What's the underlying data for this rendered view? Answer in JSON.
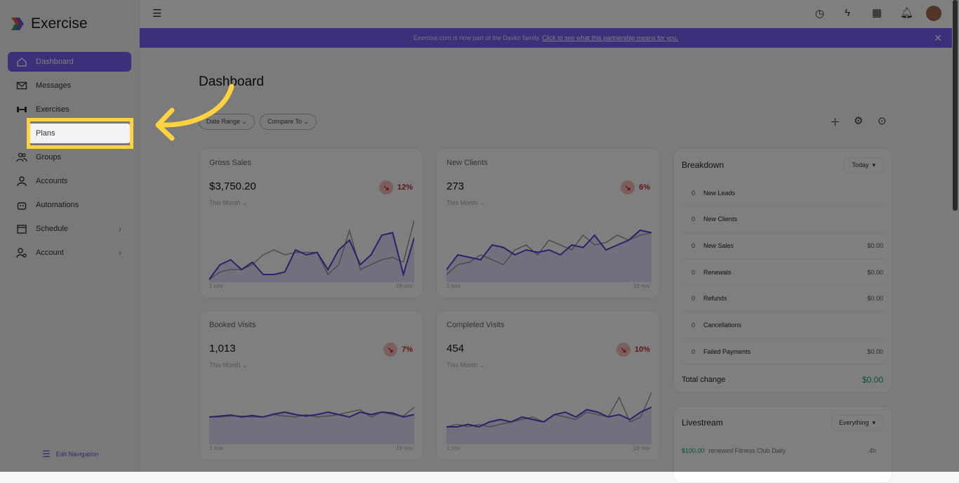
{
  "app": {
    "name": "Exercise"
  },
  "sidebar": {
    "items": [
      {
        "label": "Dashboard",
        "icon": "home-icon",
        "active": true
      },
      {
        "label": "Messages",
        "icon": "mail-icon"
      },
      {
        "label": "Exercises",
        "icon": "dumbbell-icon"
      },
      {
        "label": "Plans",
        "icon": "clipboard-icon"
      },
      {
        "label": "Groups",
        "icon": "users-icon"
      },
      {
        "label": "Accounts",
        "icon": "user-icon"
      },
      {
        "label": "Automations",
        "icon": "robot-icon"
      },
      {
        "label": "Schedule",
        "icon": "calendar-icon",
        "has_children": true
      },
      {
        "label": "Account",
        "icon": "user-gear-icon",
        "has_children": true
      }
    ],
    "edit_navigation": "Edit Navigation"
  },
  "banner": {
    "text": "Exercise.com is now part of the Daxko family. ",
    "link": "Click to see what this partnership means for you."
  },
  "page": {
    "title": "Dashboard",
    "date_range": "Date Range",
    "compare_to": "Compare To"
  },
  "metrics": [
    {
      "label": "Gross Sales",
      "value": "$3,750.20",
      "change": "12%",
      "period": "This Month",
      "start": "1 nov",
      "end": "19 nov"
    },
    {
      "label": "New Clients",
      "value": "273",
      "change": "6%",
      "period": "This Month",
      "start": "1 nov",
      "end": "19 nov"
    },
    {
      "label": "Booked Visits",
      "value": "1,013",
      "change": "7%",
      "period": "This Month",
      "start": "1 nov",
      "end": "19 nov"
    },
    {
      "label": "Completed Visits",
      "value": "454",
      "change": "10%",
      "period": "This Month",
      "start": "1 nov",
      "end": "19 nov"
    }
  ],
  "breakdown": {
    "title": "Breakdown",
    "range": "Today",
    "rows": [
      {
        "count": "0",
        "label": "New Leads",
        "amount": ""
      },
      {
        "count": "0",
        "label": "New Clients",
        "amount": ""
      },
      {
        "count": "0",
        "label": "New Sales",
        "amount": "$0.00"
      },
      {
        "count": "0",
        "label": "Renewals",
        "amount": "$0.00"
      },
      {
        "count": "0",
        "label": "Refunds",
        "amount": "$0.00"
      },
      {
        "count": "0",
        "label": "Cancellations",
        "amount": ""
      },
      {
        "count": "0",
        "label": "Failed Payments",
        "amount": "$0.00"
      }
    ],
    "total_label": "Total change",
    "total": "$0.00"
  },
  "livestream": {
    "title": "Livestream",
    "filter": "Everything",
    "items": [
      {
        "amount": "$100.00",
        "text": "renewed Fitness Club Daily",
        "time": "4h"
      }
    ]
  },
  "colors": {
    "accent": "#7b5ef2",
    "highlight": "#ffd23f",
    "negative": "#c02828",
    "positive": "#1a9e7a"
  }
}
